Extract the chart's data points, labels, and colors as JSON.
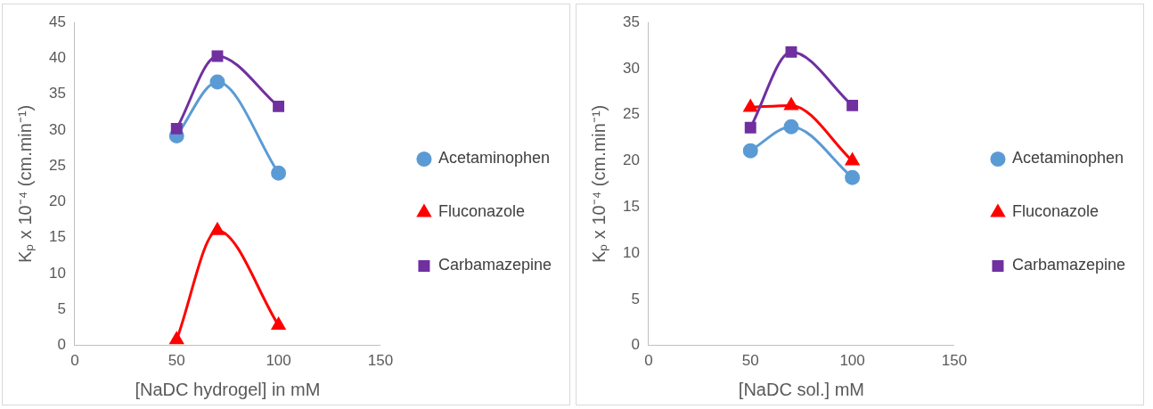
{
  "chart_data": [
    {
      "type": "line",
      "xlabel": "[NaDC hydrogel] in mM",
      "ylabel": "Kₚ x 10⁻⁴ (cm.min⁻¹)",
      "x": [
        50,
        70,
        100
      ],
      "xlim": [
        0,
        150
      ],
      "xticks": [
        0,
        50,
        100,
        150
      ],
      "ylim": [
        0,
        45
      ],
      "yticks": [
        0,
        5,
        10,
        15,
        20,
        25,
        30,
        35,
        40,
        45
      ],
      "grid": false,
      "legend": "right",
      "series": [
        {
          "name": "Acetaminophen",
          "color": "#5b9bd5",
          "marker": "circle",
          "values": [
            29.2,
            36.7,
            24
          ]
        },
        {
          "name": "Fluconazole",
          "color": "#ff0000",
          "marker": "triangle",
          "values": [
            0.8,
            16,
            2.8
          ]
        },
        {
          "name": "Carbamazepine",
          "color": "#7030a0",
          "marker": "square",
          "values": [
            30.2,
            40.3,
            33.3
          ]
        }
      ]
    },
    {
      "type": "line",
      "xlabel": "[NaDC sol.] mM",
      "ylabel": "Kₚ x 10⁻⁴ (cm.min⁻¹)",
      "x": [
        50,
        70,
        100
      ],
      "xlim": [
        0,
        150
      ],
      "xticks": [
        0,
        50,
        100,
        150
      ],
      "ylim": [
        0,
        35
      ],
      "yticks": [
        0,
        5,
        10,
        15,
        20,
        25,
        30,
        35
      ],
      "grid": false,
      "legend": "right",
      "series": [
        {
          "name": "Acetaminophen",
          "color": "#5b9bd5",
          "marker": "circle",
          "values": [
            21.1,
            23.7,
            18.2
          ]
        },
        {
          "name": "Fluconazole",
          "color": "#ff0000",
          "marker": "triangle",
          "values": [
            25.8,
            26,
            20
          ]
        },
        {
          "name": "Carbamazepine",
          "color": "#7030a0",
          "marker": "square",
          "values": [
            23.6,
            31.8,
            26
          ]
        }
      ]
    }
  ]
}
